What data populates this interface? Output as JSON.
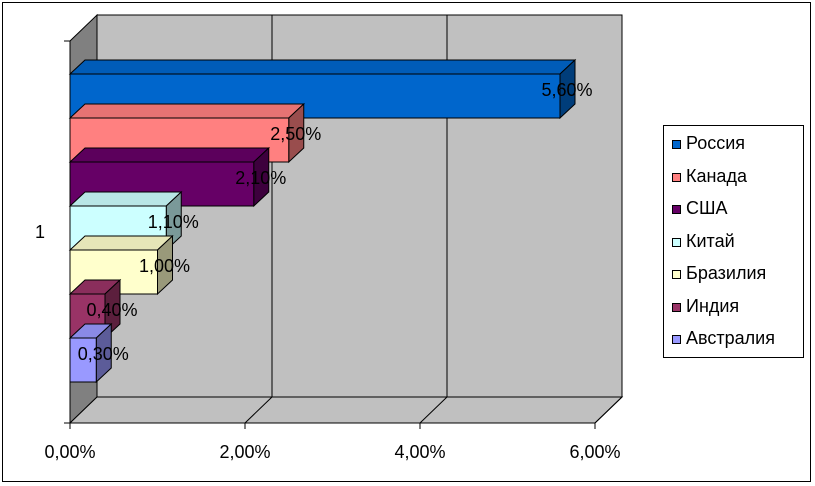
{
  "chart_data": {
    "type": "bar",
    "orientation": "horizontal",
    "style": "3d-clustered",
    "category_labels": [
      "1"
    ],
    "x_ticks": [
      "0,00%",
      "2,00%",
      "4,00%",
      "6,00%"
    ],
    "xlim": [
      0,
      6
    ],
    "grid": true,
    "legend_position": "right",
    "series": [
      {
        "name": "Россия",
        "value": 5.6,
        "label": "5,60%",
        "color": "#0066cc"
      },
      {
        "name": "Канада",
        "value": 2.5,
        "label": "2,50%",
        "color": "#ff8080"
      },
      {
        "name": "США",
        "value": 2.1,
        "label": "2,10%",
        "color": "#660066"
      },
      {
        "name": "Китай",
        "value": 1.1,
        "label": "1,10%",
        "color": "#ccffff"
      },
      {
        "name": "Бразилия",
        "value": 1.0,
        "label": "1,00%",
        "color": "#ffffcc"
      },
      {
        "name": "Индия",
        "value": 0.4,
        "label": "0,40%",
        "color": "#993366"
      },
      {
        "name": "Австралия",
        "value": 0.3,
        "label": "0,30%",
        "color": "#9999ff"
      }
    ]
  }
}
